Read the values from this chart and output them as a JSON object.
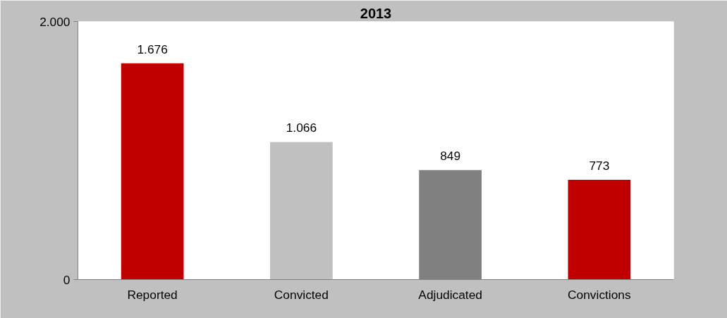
{
  "chart_data": {
    "type": "bar",
    "title": "2013",
    "categories": [
      "Reported",
      "Convicted",
      "Adjudicated",
      "Convictions"
    ],
    "values": [
      1676,
      1066,
      849,
      773
    ],
    "colors": [
      "#c00000",
      "#c0c0c0",
      "#808080",
      "#c00000"
    ],
    "value_labels": [
      "1.676",
      "1.066",
      "849",
      "773"
    ],
    "ylim": [
      0,
      2000
    ],
    "yticks": [
      0,
      {
        "value": 2000,
        "label": "2.000"
      }
    ],
    "grid": false
  }
}
